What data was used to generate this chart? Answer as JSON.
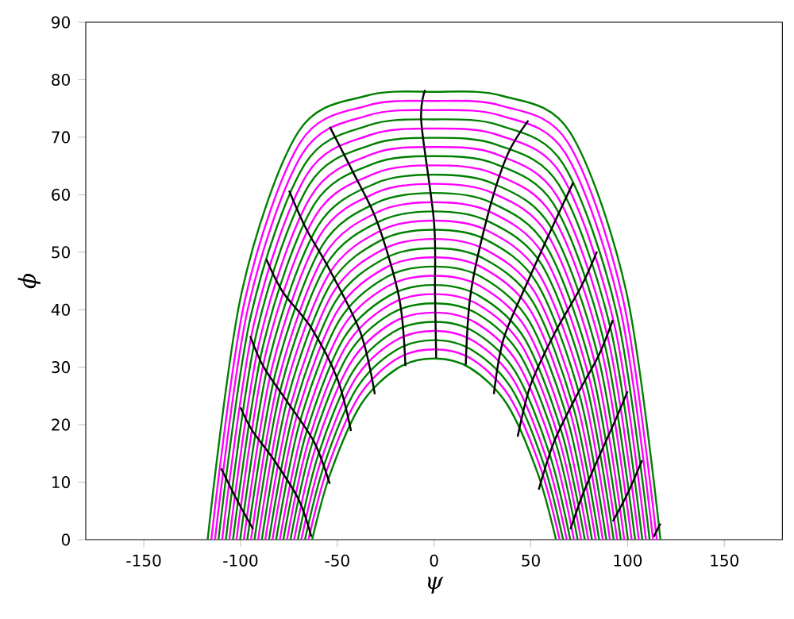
{
  "chart_data": {
    "type": "line",
    "xlabel": "ψ",
    "ylabel": "ϕ",
    "xlim": [
      -180,
      180
    ],
    "ylim": [
      0,
      90
    ],
    "xticks": [
      -150,
      -100,
      -50,
      0,
      50,
      100,
      150
    ],
    "yticks": [
      0,
      10,
      20,
      30,
      40,
      50,
      60,
      70,
      80,
      90
    ],
    "grid": false,
    "marker": "none",
    "line_style": "solid",
    "series": [
      {
        "color": "#008000",
        "x": [
          -63,
          -53.6,
          -37.8,
          -18.9,
          0,
          18.9,
          37.8,
          53.6,
          63
        ],
        "values": [
          0,
          11.5,
          23.5,
          29.8,
          31.5,
          29.8,
          23.5,
          11.5,
          0
        ]
      },
      {
        "color": "#ff00ff",
        "x": [
          -64.9,
          -55.2,
          -38.9,
          -19.5,
          0,
          19.5,
          38.9,
          55.2,
          64.9
        ],
        "values": [
          0,
          12.3,
          24.9,
          31.4,
          33.1,
          31.4,
          24.9,
          12.3,
          0
        ]
      },
      {
        "color": "#008000",
        "x": [
          -66.7,
          -56.7,
          -40,
          -20,
          0,
          20,
          40,
          56.7,
          66.7
        ],
        "values": [
          0,
          13.1,
          26.3,
          32.9,
          34.7,
          32.9,
          26.3,
          13.1,
          0
        ]
      },
      {
        "color": "#ff00ff",
        "x": [
          -68.6,
          -58.3,
          -41.2,
          -20.6,
          0,
          20.6,
          41.2,
          58.3,
          68.6
        ],
        "values": [
          0,
          13.9,
          27.7,
          34.5,
          36.3,
          34.5,
          27.7,
          13.9,
          0
        ]
      },
      {
        "color": "#008000",
        "x": [
          -70.4,
          -59.8,
          -42.2,
          -21.1,
          0,
          21.1,
          42.2,
          59.8,
          70.4
        ],
        "values": [
          0,
          14.8,
          29.1,
          36.1,
          37.9,
          36.1,
          29.1,
          14.8,
          0
        ]
      },
      {
        "color": "#ff00ff",
        "x": [
          -72.3,
          -61.5,
          -43.4,
          -21.7,
          0,
          21.7,
          43.4,
          61.5,
          72.3
        ],
        "values": [
          0,
          15.7,
          30.6,
          37.7,
          39.5,
          37.7,
          30.6,
          15.7,
          0
        ]
      },
      {
        "color": "#008000",
        "x": [
          -74.2,
          -63.1,
          -44.5,
          -22.3,
          0,
          22.3,
          44.5,
          63.1,
          74.2
        ],
        "values": [
          0,
          16.6,
          32.1,
          39.3,
          41.1,
          39.3,
          32.1,
          16.6,
          0
        ]
      },
      {
        "color": "#ff00ff",
        "x": [
          -76,
          -64.6,
          -45.6,
          -22.8,
          0,
          22.8,
          45.6,
          64.6,
          76
        ],
        "values": [
          0,
          17.5,
          33.6,
          40.9,
          42.7,
          40.9,
          33.6,
          17.5,
          0
        ]
      },
      {
        "color": "#008000",
        "x": [
          -77.9,
          -66.2,
          -46.7,
          -23.4,
          0,
          23.4,
          46.7,
          66.2,
          77.9
        ],
        "values": [
          0,
          18.4,
          35,
          42.4,
          44.3,
          42.4,
          35,
          18.4,
          0
        ]
      },
      {
        "color": "#ff00ff",
        "x": [
          -79.7,
          -67.7,
          -47.8,
          -23.9,
          0,
          23.9,
          47.8,
          67.7,
          79.7
        ],
        "values": [
          0,
          19.4,
          36.6,
          44.1,
          45.9,
          44.1,
          36.6,
          19.4,
          0
        ]
      },
      {
        "color": "#008000",
        "x": [
          -81.6,
          -69.4,
          -49,
          -24.5,
          0,
          24.5,
          49,
          69.4,
          81.6
        ],
        "values": [
          0,
          20.4,
          38.1,
          45.7,
          47.5,
          45.7,
          38.1,
          20.4,
          0
        ]
      },
      {
        "color": "#ff00ff",
        "x": [
          -83.5,
          -71,
          -50.1,
          -25.1,
          0,
          25.1,
          50.1,
          71,
          83.5
        ],
        "values": [
          0,
          21.4,
          39.7,
          47.3,
          49.1,
          47.3,
          39.7,
          21.4,
          0
        ]
      },
      {
        "color": "#008000",
        "x": [
          -85.3,
          -72.5,
          -51.2,
          -25.6,
          0,
          25.6,
          51.2,
          72.5,
          85.3
        ],
        "values": [
          0,
          22.4,
          41.3,
          48.9,
          50.7,
          48.9,
          41.3,
          22.4,
          0
        ]
      },
      {
        "color": "#ff00ff",
        "x": [
          -87.2,
          -74.1,
          -52.3,
          -26.2,
          0,
          26.2,
          52.3,
          74.1,
          87.2
        ],
        "values": [
          0,
          23.4,
          42.9,
          50.5,
          52.3,
          50.5,
          42.9,
          23.4,
          0
        ]
      },
      {
        "color": "#008000",
        "x": [
          -89,
          -75.7,
          -53.4,
          -26.7,
          0,
          26.7,
          53.4,
          75.7,
          89
        ],
        "values": [
          0,
          24.5,
          44.5,
          52.2,
          53.9,
          52.2,
          44.5,
          24.5,
          0
        ]
      },
      {
        "color": "#ff00ff",
        "x": [
          -90.9,
          -77.3,
          -54.5,
          -27.3,
          0,
          27.3,
          54.5,
          77.3,
          90.9
        ],
        "values": [
          0,
          25.6,
          46.1,
          53.8,
          55.5,
          53.8,
          46.1,
          25.6,
          0
        ]
      },
      {
        "color": "#008000",
        "x": [
          -92.8,
          -78.9,
          -55.7,
          -27.8,
          0,
          27.8,
          55.7,
          78.9,
          92.8
        ],
        "values": [
          0,
          26.7,
          47.8,
          55.4,
          57.1,
          55.4,
          47.8,
          26.7,
          0
        ]
      },
      {
        "color": "#ff00ff",
        "x": [
          -94.6,
          -80.4,
          -56.8,
          -28.4,
          0,
          28.4,
          56.8,
          80.4,
          94.6
        ],
        "values": [
          0,
          27.8,
          49.4,
          57.1,
          58.7,
          57.1,
          49.4,
          27.8,
          0
        ]
      },
      {
        "color": "#008000",
        "x": [
          -96.5,
          -82,
          -57.9,
          -29,
          0,
          29,
          57.9,
          82,
          96.5
        ],
        "values": [
          0,
          28.9,
          51.1,
          58.7,
          60.3,
          58.7,
          51.1,
          28.9,
          0
        ]
      },
      {
        "color": "#ff00ff",
        "x": [
          -98.3,
          -83.6,
          -59,
          -29.5,
          0,
          29.5,
          59,
          83.6,
          98.3
        ],
        "values": [
          0,
          30.1,
          52.9,
          60.4,
          61.9,
          60.4,
          52.9,
          30.1,
          0
        ]
      },
      {
        "color": "#008000",
        "x": [
          -100.2,
          -85.2,
          -60.1,
          -30.1,
          0,
          30.1,
          60.1,
          85.2,
          100.2
        ],
        "values": [
          0,
          31.3,
          54.5,
          62,
          63.5,
          62,
          54.5,
          31.3,
          0
        ]
      },
      {
        "color": "#ff00ff",
        "x": [
          -102.1,
          -86.8,
          -61.3,
          -30.6,
          0,
          30.6,
          61.3,
          86.8,
          102.1
        ],
        "values": [
          0,
          32.6,
          56.3,
          63.7,
          65.1,
          63.7,
          56.3,
          32.6,
          0
        ]
      },
      {
        "color": "#008000",
        "x": [
          -103.9,
          -88.3,
          -62.3,
          -31.2,
          0,
          31.2,
          62.3,
          88.3,
          103.9
        ],
        "values": [
          0,
          33.8,
          58.1,
          65.4,
          66.7,
          65.4,
          58.1,
          33.8,
          0
        ]
      },
      {
        "color": "#ff00ff",
        "x": [
          -105.8,
          -89.9,
          -63.5,
          -31.7,
          0,
          31.7,
          63.5,
          89.9,
          105.8
        ],
        "values": [
          0,
          35,
          59.8,
          67.1,
          68.3,
          67.1,
          59.8,
          35,
          0
        ]
      },
      {
        "color": "#008000",
        "x": [
          -107.6,
          -91.5,
          -64.6,
          -32.3,
          0,
          32.3,
          64.6,
          91.5,
          107.6
        ],
        "values": [
          0,
          36.3,
          61.7,
          68.7,
          69.9,
          68.7,
          61.7,
          36.3,
          0
        ]
      },
      {
        "color": "#ff00ff",
        "x": [
          -109.5,
          -93.1,
          -65.7,
          -32.9,
          0,
          32.9,
          65.7,
          93.1,
          109.5
        ],
        "values": [
          0,
          37.5,
          63.5,
          70.4,
          71.5,
          70.4,
          63.5,
          37.5,
          0
        ]
      },
      {
        "color": "#008000",
        "x": [
          -111.4,
          -94.7,
          -66.8,
          -33.4,
          0,
          33.4,
          66.8,
          94.7,
          111.4
        ],
        "values": [
          0,
          38.9,
          65.3,
          72.1,
          73.1,
          72.1,
          65.3,
          38.9,
          0
        ]
      },
      {
        "color": "#ff00ff",
        "x": [
          -113.2,
          -96.2,
          -67.9,
          -34,
          0,
          34,
          67.9,
          96.2,
          113.2
        ],
        "values": [
          0,
          40.2,
          67.2,
          73.8,
          74.7,
          73.8,
          67.2,
          40.2,
          0
        ]
      },
      {
        "color": "#ff00ff",
        "x": [
          -115.1,
          -97.8,
          -69.1,
          -34.5,
          0,
          34.5,
          69.1,
          97.8,
          115.1
        ],
        "values": [
          0,
          41.6,
          69.1,
          75.5,
          76.3,
          75.5,
          69.1,
          41.6,
          0
        ]
      },
      {
        "color": "#008000",
        "x": [
          -117,
          -99.5,
          -70.2,
          -35.1,
          0,
          35.1,
          70.2,
          99.5,
          117
        ],
        "values": [
          0,
          42.9,
          70.9,
          77.2,
          77.9,
          77.2,
          70.9,
          42.9,
          0
        ]
      },
      {
        "color": "#000000",
        "x": [
          -93.5,
          -102,
          -110
        ],
        "values": [
          1.8,
          7,
          12.4
        ]
      },
      {
        "color": "#000000",
        "x": [
          -63.4,
          -70,
          -82.6,
          -94,
          -100
        ],
        "values": [
          0.5,
          7,
          13.8,
          19,
          23
        ]
      },
      {
        "color": "#000000",
        "x": [
          -53.9,
          -62,
          -75.7,
          -88,
          -95
        ],
        "values": [
          9.7,
          17,
          23.9,
          30,
          35.4
        ]
      },
      {
        "color": "#000000",
        "x": [
          -42.9,
          -50,
          -63.4,
          -78,
          -86.7
        ],
        "values": [
          18.9,
          28,
          36.8,
          43,
          48.8
        ]
      },
      {
        "color": "#000000",
        "x": [
          -30.6,
          -38,
          -53.9,
          -66,
          -74.9
        ],
        "values": [
          25.3,
          36,
          46.9,
          54,
          60.7
        ]
      },
      {
        "color": "#000000",
        "x": [
          -14.8,
          -18,
          -29.3,
          -42,
          -53.9
        ],
        "values": [
          30.2,
          42,
          55.2,
          64,
          71.8
        ]
      },
      {
        "color": "#000000",
        "x": [
          1.1,
          0.5,
          0,
          -6.6,
          -4.6
        ],
        "values": [
          31.6,
          43,
          55.2,
          72.7,
          78.2
        ]
      },
      {
        "color": "#000000",
        "x": [
          16.4,
          19,
          28.2,
          38,
          48.7
        ],
        "values": [
          30.4,
          43,
          57,
          67,
          72.9
        ]
      },
      {
        "color": "#000000",
        "x": [
          30.9,
          36,
          48.7,
          62,
          71.9
        ],
        "values": [
          25.3,
          35,
          45.1,
          55,
          62.1
        ]
      },
      {
        "color": "#000000",
        "x": [
          43.2,
          50,
          62.3,
          76,
          84.2
        ],
        "values": [
          17.9,
          27,
          35.9,
          44,
          50.1
        ]
      },
      {
        "color": "#000000",
        "x": [
          54.1,
          62,
          73.3,
          85,
          92.4
        ],
        "values": [
          8.7,
          17,
          24.8,
          32,
          38.2
        ]
      },
      {
        "color": "#000000",
        "x": [
          70.5,
          77,
          85.6,
          94,
          100
        ],
        "values": [
          1.8,
          8,
          14.7,
          21,
          25.8
        ]
      },
      {
        "color": "#000000",
        "x": [
          92.4,
          100,
          107.5
        ],
        "values": [
          3.2,
          8,
          13.8
        ]
      },
      {
        "color": "#000000",
        "x": [
          113.5,
          117
        ],
        "values": [
          0.5,
          2.8
        ]
      }
    ]
  }
}
